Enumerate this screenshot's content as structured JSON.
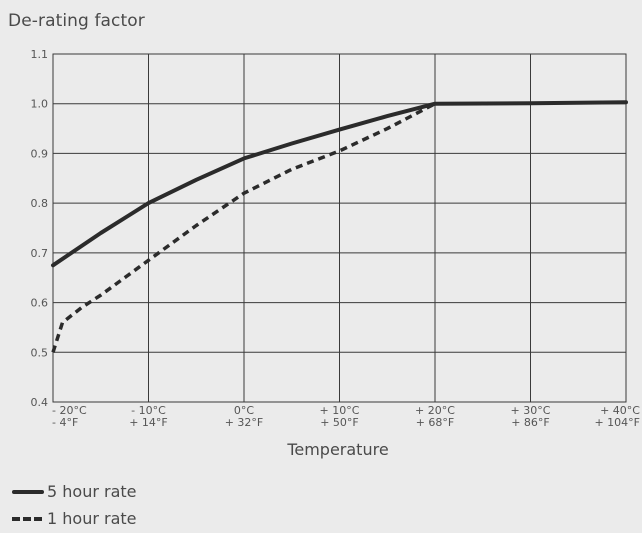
{
  "chart_data": {
    "type": "line",
    "ylabel": "De-rating factor",
    "xlabel": "Temperature",
    "x": [
      -20,
      -10,
      0,
      10,
      20,
      30,
      40
    ],
    "xticks": [
      {
        "x": -20,
        "top": "- 20°C",
        "bottom": "- 4°F"
      },
      {
        "x": -10,
        "top": "- 10°C",
        "bottom": "+ 14°F"
      },
      {
        "x": 0,
        "top": "0°C",
        "bottom": "+ 32°F"
      },
      {
        "x": 10,
        "top": "+ 10°C",
        "bottom": "+ 50°F"
      },
      {
        "x": 20,
        "top": "+ 20°C",
        "bottom": "+ 68°F"
      },
      {
        "x": 30,
        "top": "+ 30°C",
        "bottom": "+ 86°F"
      },
      {
        "x": 40,
        "top": "+ 40°C",
        "bottom": "+ 104°F"
      }
    ],
    "yticks": [
      "0.4",
      "0.5",
      "0.6",
      "0.7",
      "0.8",
      "0.9",
      "1.0",
      "1.1"
    ],
    "xlim": [
      -20,
      40
    ],
    "ylim": [
      0.4,
      1.1
    ],
    "grid": true,
    "legend_position": "bottom-left",
    "series": [
      {
        "name": "5 hour rate",
        "style": "solid",
        "color": "#2b2b2b",
        "points": [
          [
            -20,
            0.675
          ],
          [
            -15,
            0.74
          ],
          [
            -10,
            0.8
          ],
          [
            -5,
            0.847
          ],
          [
            0,
            0.89
          ],
          [
            5,
            0.92
          ],
          [
            10,
            0.948
          ],
          [
            15,
            0.975
          ],
          [
            20,
            1.0
          ],
          [
            30,
            1.001
          ],
          [
            40,
            1.003
          ]
        ]
      },
      {
        "name": "1 hour rate",
        "style": "dashed",
        "color": "#2b2b2b",
        "points": [
          [
            -20,
            0.5
          ],
          [
            -19,
            0.56
          ],
          [
            -17,
            0.59
          ],
          [
            -15,
            0.615
          ],
          [
            -10,
            0.685
          ],
          [
            -5,
            0.755
          ],
          [
            0,
            0.82
          ],
          [
            5,
            0.868
          ],
          [
            10,
            0.905
          ],
          [
            15,
            0.95
          ],
          [
            20,
            1.0
          ]
        ]
      }
    ]
  }
}
